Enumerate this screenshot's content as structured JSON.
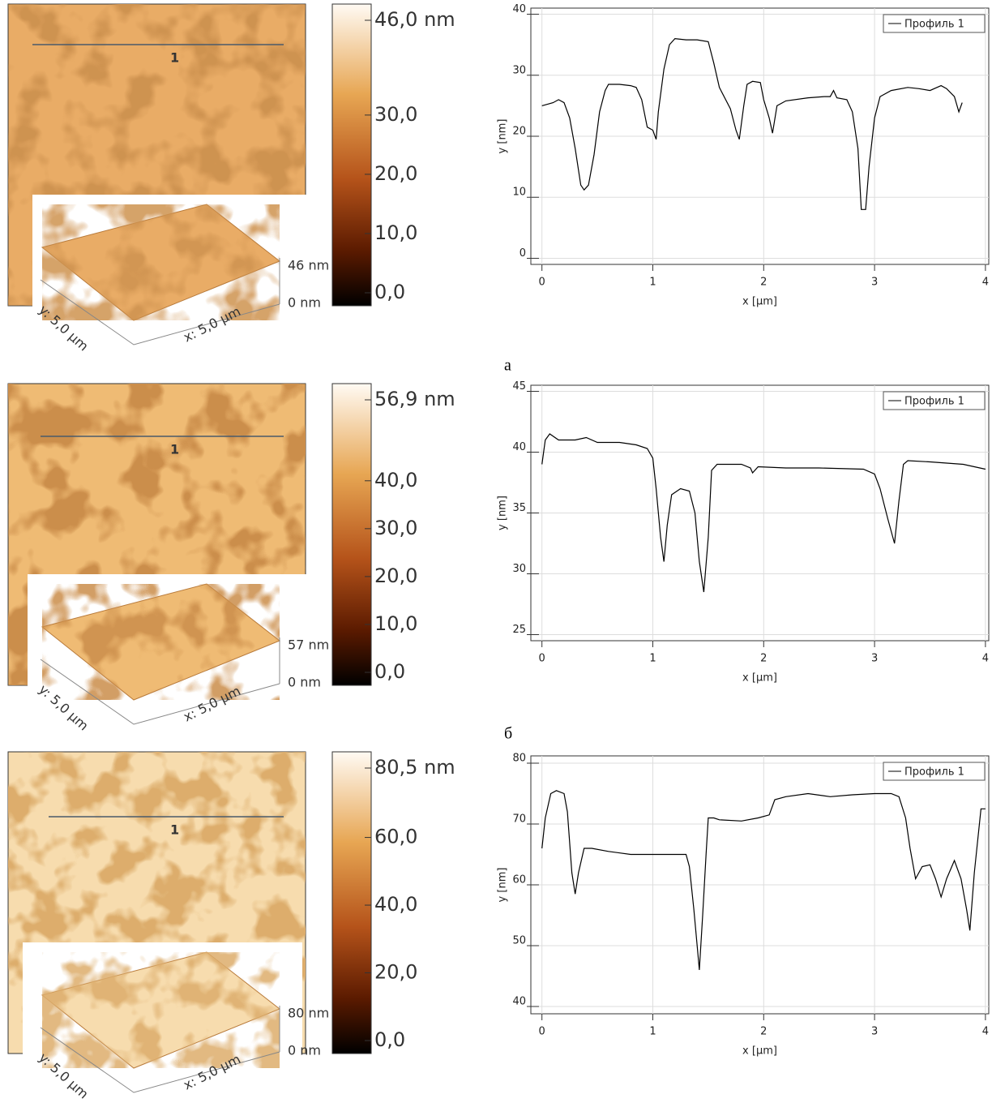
{
  "chart_data": [
    {
      "type": "line",
      "xlabel": "x [µm]",
      "ylabel": "y [nm]",
      "grid": true,
      "legend": "upper right",
      "x": [
        0,
        0.1,
        0.15,
        0.2,
        0.25,
        0.3,
        0.35,
        0.38,
        0.42,
        0.47,
        0.52,
        0.57,
        0.6,
        0.7,
        0.8,
        0.85,
        0.9,
        0.95,
        1.0,
        1.03,
        1.05,
        1.1,
        1.15,
        1.2,
        1.3,
        1.4,
        1.5,
        1.55,
        1.6,
        1.7,
        1.75,
        1.78,
        1.82,
        1.85,
        1.9,
        1.97,
        2.0,
        2.05,
        2.08,
        2.12,
        2.2,
        2.4,
        2.55,
        2.6,
        2.63,
        2.66,
        2.75,
        2.8,
        2.85,
        2.88,
        2.92,
        2.95,
        3.0,
        3.05,
        3.15,
        3.3,
        3.4,
        3.5,
        3.6,
        3.65,
        3.72,
        3.76,
        3.79
      ],
      "series": [
        {
          "name": "Профиль 1",
          "color": "#000000",
          "values": [
            25,
            25.5,
            26,
            25.5,
            23,
            18,
            12,
            11.2,
            12,
            17,
            24,
            27.5,
            28.5,
            28.5,
            28.3,
            28,
            26,
            21.5,
            21,
            19.5,
            24,
            31,
            35,
            36,
            35.8,
            35.8,
            35.5,
            32,
            28,
            24.5,
            21,
            19.5,
            25,
            28.5,
            29,
            28.8,
            26,
            23,
            20.5,
            25,
            25.8,
            26.3,
            26.5,
            26.5,
            27.5,
            26.3,
            26,
            24,
            18,
            8,
            8,
            15,
            23,
            26.5,
            27.5,
            28,
            27.8,
            27.5,
            28.3,
            27.8,
            26.5,
            24,
            25.5
          ]
        }
      ],
      "xlim": [
        -0.1,
        4.03
      ],
      "xticks": [
        0,
        1,
        2,
        3,
        4
      ],
      "ylim": [
        -1,
        41
      ],
      "yticks": [
        0,
        10,
        20,
        30,
        40
      ]
    },
    {
      "type": "line",
      "xlabel": "x [µm]",
      "ylabel": "y [nm]",
      "grid": true,
      "legend": "upper right",
      "x": [
        0,
        0.03,
        0.07,
        0.15,
        0.3,
        0.4,
        0.5,
        0.7,
        0.85,
        0.95,
        1.0,
        1.03,
        1.07,
        1.1,
        1.13,
        1.17,
        1.25,
        1.33,
        1.38,
        1.42,
        1.46,
        1.5,
        1.53,
        1.58,
        1.8,
        1.88,
        1.9,
        1.95,
        2.2,
        2.5,
        2.9,
        3.0,
        3.05,
        3.12,
        3.18,
        3.22,
        3.26,
        3.3,
        3.5,
        3.8,
        4.0
      ],
      "series": [
        {
          "name": "Профиль 1",
          "color": "#000000",
          "values": [
            39,
            41,
            41.5,
            41,
            41,
            41.2,
            40.8,
            40.8,
            40.6,
            40.3,
            39.5,
            37,
            33,
            31,
            34,
            36.5,
            37,
            36.8,
            35,
            31,
            28.5,
            33,
            38.5,
            39,
            39,
            38.7,
            38.3,
            38.8,
            38.7,
            38.7,
            38.6,
            38.2,
            37,
            34.5,
            32.5,
            36,
            39,
            39.3,
            39.2,
            39,
            38.6
          ]
        }
      ],
      "xlim": [
        -0.1,
        4.03
      ],
      "xticks": [
        0,
        1,
        2,
        3,
        4
      ],
      "ylim": [
        24.5,
        45.5
      ],
      "yticks": [
        25,
        30,
        35,
        40,
        45
      ]
    },
    {
      "type": "line",
      "xlabel": "x [µm]",
      "ylabel": "y [nm]",
      "grid": true,
      "legend": "upper right",
      "x": [
        0,
        0.03,
        0.08,
        0.13,
        0.2,
        0.23,
        0.27,
        0.3,
        0.33,
        0.38,
        0.45,
        0.6,
        0.8,
        1.0,
        1.2,
        1.3,
        1.33,
        1.37,
        1.4,
        1.42,
        1.45,
        1.48,
        1.5,
        1.55,
        1.6,
        1.8,
        1.95,
        2.05,
        2.1,
        2.2,
        2.4,
        2.6,
        2.8,
        3.0,
        3.15,
        3.22,
        3.28,
        3.32,
        3.37,
        3.43,
        3.5,
        3.55,
        3.6,
        3.65,
        3.72,
        3.78,
        3.83,
        3.86,
        3.9,
        3.96,
        4.0
      ],
      "series": [
        {
          "name": "Профиль 1",
          "color": "#000000",
          "values": [
            66,
            71,
            75,
            75.5,
            75,
            72,
            62,
            58.5,
            62,
            66,
            66,
            65.5,
            65,
            65,
            65,
            65,
            63,
            56,
            50,
            46,
            55,
            65,
            71,
            71,
            70.7,
            70.5,
            71,
            71.5,
            74,
            74.5,
            75,
            74.5,
            74.8,
            75,
            75,
            74.5,
            71,
            66,
            61,
            63,
            63.3,
            61,
            58,
            61,
            64,
            61,
            56,
            52.5,
            62,
            72.5,
            72.5
          ]
        }
      ],
      "xlim": [
        -0.1,
        4.03
      ],
      "xticks": [
        0,
        1,
        2,
        3,
        4
      ],
      "ylim": [
        38.8,
        81.2
      ],
      "yticks": [
        40,
        50,
        60,
        70,
        80
      ]
    }
  ],
  "afm_panels": [
    {
      "scan_label": "1",
      "colorbar_lim": [
        0,
        46
      ],
      "colorbar_ticks": [
        {
          "value": 0,
          "label": "0,0"
        },
        {
          "value": 10,
          "label": "10,0"
        },
        {
          "value": 20,
          "label": "20,0"
        },
        {
          "value": 30,
          "label": "30,0"
        },
        {
          "value": 46,
          "label": "46,0 nm"
        }
      ],
      "inset": {
        "z_max": "46 nm",
        "z_min": "0 nm",
        "y_size": "y: 5,0 µm",
        "x_size": "x: 5,0 µm"
      }
    },
    {
      "scan_label": "1",
      "colorbar_lim": [
        0,
        56.9
      ],
      "colorbar_ticks": [
        {
          "value": 0,
          "label": "0,0"
        },
        {
          "value": 10,
          "label": "10,0"
        },
        {
          "value": 20,
          "label": "20,0"
        },
        {
          "value": 30,
          "label": "30,0"
        },
        {
          "value": 40,
          "label": "40,0"
        },
        {
          "value": 56.9,
          "label": "56,9 nm"
        }
      ],
      "inset": {
        "z_max": "57 nm",
        "z_min": "0 nm",
        "y_size": "y: 5,0 µm",
        "x_size": "x: 5,0 µm"
      }
    },
    {
      "scan_label": "1",
      "colorbar_lim": [
        0,
        80.5
      ],
      "colorbar_ticks": [
        {
          "value": 0,
          "label": "0,0"
        },
        {
          "value": 20,
          "label": "20,0"
        },
        {
          "value": 40,
          "label": "40,0"
        },
        {
          "value": 60,
          "label": "60,0"
        },
        {
          "value": 80.5,
          "label": "80,5 nm"
        }
      ],
      "inset": {
        "z_max": "80 nm",
        "z_min": "0 nm",
        "y_size": "y: 5,0 µm",
        "x_size": "x: 5,0 µm"
      }
    }
  ],
  "captions": [
    "а",
    "б"
  ]
}
